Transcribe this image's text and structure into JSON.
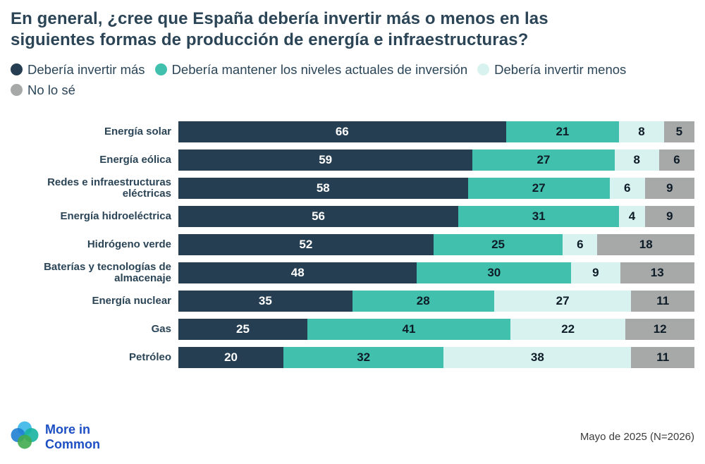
{
  "title": "En general, ¿cree que España debería invertir más o menos en las\nsiguientes formas de producción de energía e infraestructuras?",
  "legend": [
    {
      "label": "Debería invertir más",
      "color": "#263e52"
    },
    {
      "label": "Debería mantener los niveles actuales de inversión",
      "color": "#41c1ad"
    },
    {
      "label": "Debería invertir menos",
      "color": "#d8f3ef"
    },
    {
      "label": "No lo sé",
      "color": "#a7a9a9"
    }
  ],
  "chart_data": {
    "type": "bar",
    "stacked": true,
    "orientation": "horizontal",
    "xlim": [
      0,
      100
    ],
    "legend_position": "top",
    "categories": [
      "Energía solar",
      "Energía eólica",
      "Redes e infraestructuras eléctricas",
      "Energía hidroeléctrica",
      "Hidrógeno verde",
      "Baterías y tecnologías de almacenaje",
      "Energía nuclear",
      "Gas",
      "Petróleo"
    ],
    "series": [
      {
        "name": "Debería invertir más",
        "color": "#263e52",
        "text_color": "#ffffff",
        "values": [
          66,
          59,
          58,
          56,
          52,
          48,
          35,
          25,
          20
        ]
      },
      {
        "name": "Debería mantener los niveles actuales de inversión",
        "color": "#41c1ad",
        "text_color": "#0e1c28",
        "values": [
          21,
          27,
          27,
          31,
          25,
          30,
          28,
          41,
          32
        ]
      },
      {
        "name": "Debería invertir menos",
        "color": "#d8f3ef",
        "text_color": "#0e1c28",
        "values": [
          8,
          8,
          6,
          4,
          6,
          9,
          27,
          22,
          38
        ]
      },
      {
        "name": "No lo sé",
        "color": "#a7a9a9",
        "text_color": "#0e1c28",
        "values": [
          5,
          6,
          9,
          9,
          18,
          13,
          11,
          12,
          11
        ]
      }
    ]
  },
  "footer": {
    "brand": "More in Common",
    "note": "Mayo de 2025 (N=2026)"
  }
}
